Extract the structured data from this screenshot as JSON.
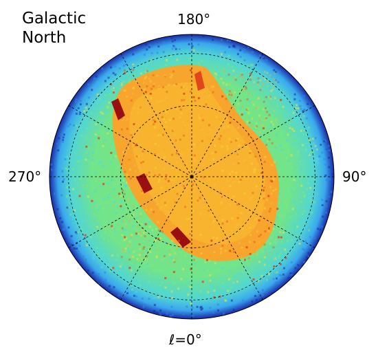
{
  "chart_data": {
    "type": "heatmap",
    "projection": "polar (orthographic hemisphere)",
    "title_lines": [
      "Galactic",
      "North"
    ],
    "longitude_labels": {
      "top": "180°",
      "left": "270°",
      "right": "90°",
      "bottom": "ℓ=0°"
    },
    "grid": true,
    "grid_style": "dashed",
    "meridian_step_deg": 30,
    "latitude_circle_step_deg": 30,
    "colormap": "jet",
    "palette": {
      "deep_blue": "#1a2aa8",
      "blue": "#2f7fe8",
      "cyan": "#48d8f0",
      "green": "#7ee87a",
      "yellow": "#f2e23a",
      "orange": "#f7a52c",
      "red": "#e0451c",
      "dark_red": "#9a1010"
    }
  }
}
